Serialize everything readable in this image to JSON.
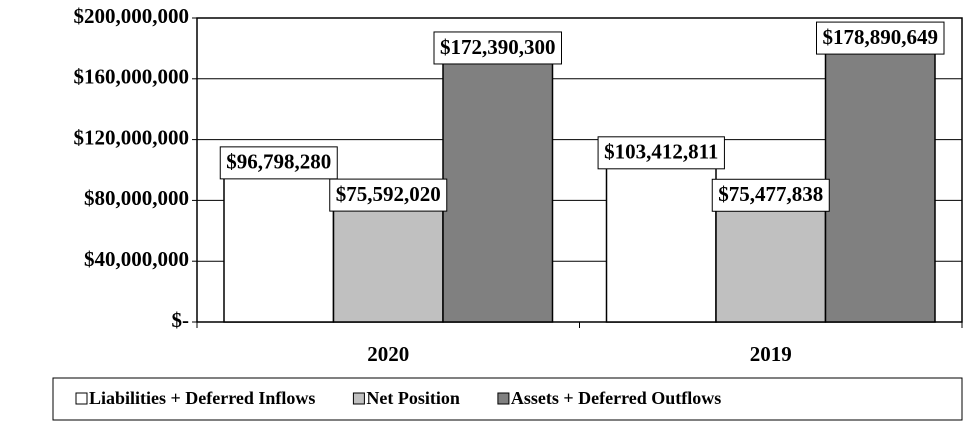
{
  "chart_data": {
    "type": "bar",
    "categories": [
      "2020",
      "2019"
    ],
    "series": [
      {
        "name": "Liabilities + Deferred Inflows",
        "color": "#ffffff",
        "values": [
          96798280,
          103412811
        ],
        "value_labels": [
          "$96,798,280",
          "$103,412,811"
        ]
      },
      {
        "name": "Net Position",
        "color": "#c0c0c0",
        "values": [
          75592020,
          75477838
        ],
        "value_labels": [
          "$75,592,020",
          "$75,477,838"
        ]
      },
      {
        "name": "Assets + Deferred Outflows",
        "color": "#808080",
        "values": [
          172390300,
          178890649
        ],
        "value_labels": [
          "$172,390,300",
          "$178,890,649"
        ]
      }
    ],
    "ylim": [
      0,
      200000000
    ],
    "yticks": [
      {
        "value": 0,
        "label": "$-"
      },
      {
        "value": 40000000,
        "label": "$40,000,000"
      },
      {
        "value": 80000000,
        "label": "$80,000,000"
      },
      {
        "value": 120000000,
        "label": "$120,000,000"
      },
      {
        "value": 160000000,
        "label": "$160,000,000"
      },
      {
        "value": 200000000,
        "label": "$200,000,000"
      }
    ],
    "grid": true,
    "legend": "bottom"
  }
}
